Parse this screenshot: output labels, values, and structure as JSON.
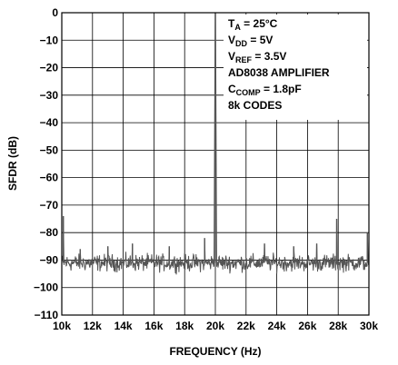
{
  "chart_data": {
    "type": "line",
    "title": "",
    "xlabel": "FREQUENCY (Hz)",
    "ylabel": "SFDR (dB)",
    "xlim": [
      10000,
      30000
    ],
    "ylim": [
      -110,
      0
    ],
    "grid": true,
    "x_tick_labels": [
      "10k",
      "12k",
      "14k",
      "16k",
      "18k",
      "20k",
      "22k",
      "24k",
      "26k",
      "28k",
      "30k"
    ],
    "x_ticks": [
      10000,
      12000,
      14000,
      16000,
      18000,
      20000,
      22000,
      24000,
      26000,
      28000,
      30000
    ],
    "y_tick_labels": [
      "0",
      "−10",
      "−20",
      "−30",
      "−40",
      "−50",
      "−60",
      "−70",
      "−80",
      "−90",
      "−100",
      "−110"
    ],
    "y_ticks": [
      0,
      -10,
      -20,
      -30,
      -40,
      -50,
      -60,
      -70,
      -80,
      -90,
      -100,
      -110
    ],
    "series": [
      {
        "color": "#555555",
        "noise_floor_db": -91,
        "fundamental": {
          "x": 20000,
          "y": 0
        },
        "spurs": [
          {
            "x": 10100,
            "y": -74
          },
          {
            "x": 11200,
            "y": -86
          },
          {
            "x": 13000,
            "y": -85
          },
          {
            "x": 14600,
            "y": -84
          },
          {
            "x": 17000,
            "y": -85
          },
          {
            "x": 19300,
            "y": -82
          },
          {
            "x": 23200,
            "y": -84
          },
          {
            "x": 25100,
            "y": -85
          },
          {
            "x": 26600,
            "y": -84
          },
          {
            "x": 27900,
            "y": -75
          },
          {
            "x": 29900,
            "y": -80
          }
        ]
      }
    ]
  },
  "annotations": [
    {
      "main": "T",
      "sub": "A",
      "rest": " = 25°C"
    },
    {
      "main": "V",
      "sub": "DD",
      "rest": " = 5V"
    },
    {
      "main": "V",
      "sub": "REF",
      "rest": " = 3.5V"
    },
    {
      "main": "AD8038 AMPLIFIER",
      "sub": "",
      "rest": ""
    },
    {
      "main": "C",
      "sub": "COMP",
      "rest": " = 1.8pF"
    },
    {
      "main": "8k CODES",
      "sub": "",
      "rest": ""
    }
  ]
}
